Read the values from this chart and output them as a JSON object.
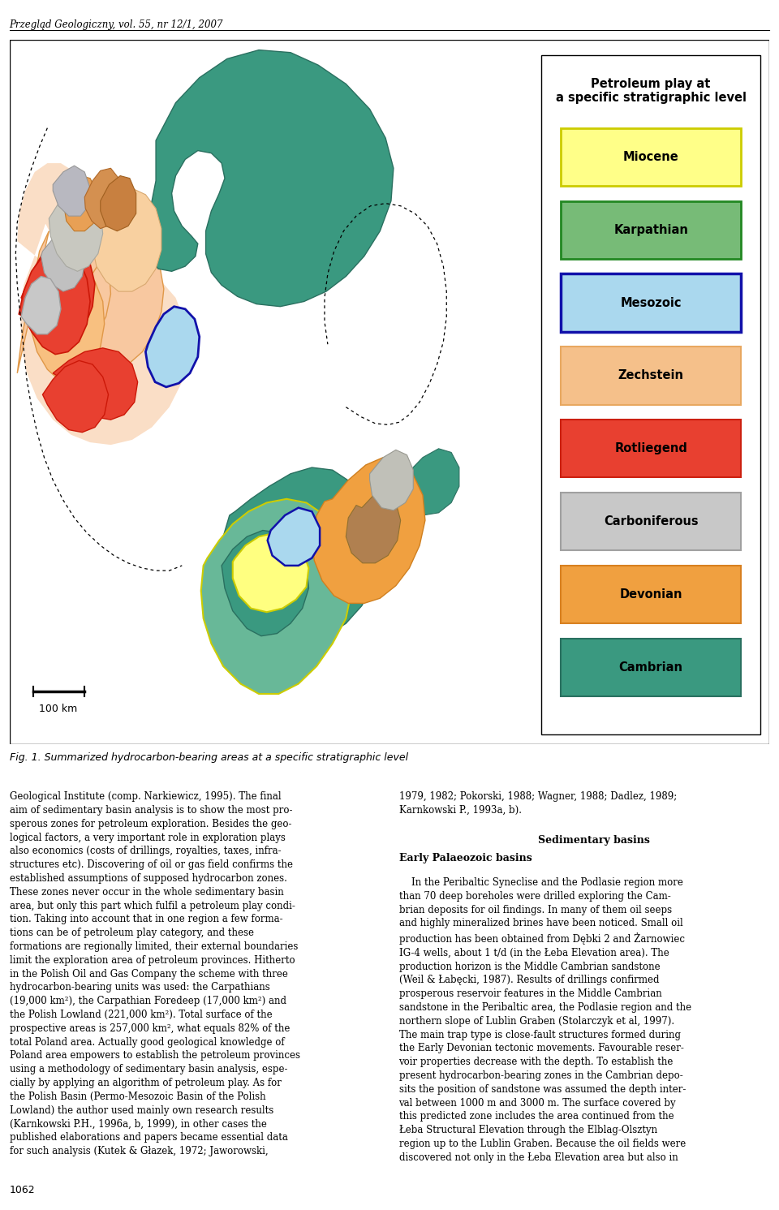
{
  "header_text": "Przegląd Geologiczny, vol. 55, nr 12/1, 2007",
  "fig_caption": "Fig. 1. Summarized hydrocarbon-bearing areas at a specific stratigraphic level",
  "scale_bar_text": "100 km",
  "legend_title": "Petroleum play at\na specific stratigraphic level",
  "legend_items": [
    {
      "label": "Miocene",
      "fill": "#FFFF88",
      "edge": "#CCCC00",
      "ewidth": 2.0
    },
    {
      "label": "Karpathian",
      "fill": "#77BB77",
      "edge": "#228822",
      "ewidth": 2.0
    },
    {
      "label": "Mesozoic",
      "fill": "#AAD8EE",
      "edge": "#1111AA",
      "ewidth": 2.5
    },
    {
      "label": "Zechstein",
      "fill": "#F5C08A",
      "edge": "#E8A860",
      "ewidth": 1.5
    },
    {
      "label": "Rotliegend",
      "fill": "#E84030",
      "edge": "#CC2010",
      "ewidth": 1.5
    },
    {
      "label": "Carboniferous",
      "fill": "#C8C8C8",
      "edge": "#A0A0A0",
      "ewidth": 1.5
    },
    {
      "label": "Devonian",
      "fill": "#F0A040",
      "edge": "#D88020",
      "ewidth": 1.5
    },
    {
      "label": "Cambrian",
      "fill": "#3A9980",
      "edge": "#2A7060",
      "ewidth": 1.5
    }
  ],
  "body_text_left": "Geological Institute (comp. Narkiewicz, 1995). The final\naim of sedimentary basin analysis is to show the most pro-\nsperous zones for petroleum exploration. Besides the geo-\nlogical factors, a very important role in exploration plays\nalso economics (costs of drillings, royalties, taxes, infra-\nstructures etc). Discovering of oil or gas field confirms the\nestablished assumptions of supposed hydrocarbon zones.\nThese zones never occur in the whole sedimentary basin\narea, but only this part which fulfil a petroleum play condi-\ntion. Taking into account that in one region a few forma-\ntions can be of petroleum play category, and these\nformations are regionally limited, their external boundaries\nlimit the exploration area of petroleum provinces. Hitherto\nin the Polish Oil and Gas Company the scheme with three\nhydrocarbon-bearing units was used: the Carpathians\n(19,000 km²), the Carpathian Foredeep (17,000 km²) and\nthe Polish Lowland (221,000 km²). Total surface of the\nprospective areas is 257,000 km², what equals 82% of the\ntotal Poland area. Actually good geological knowledge of\nPoland area empowers to establish the petroleum provinces\nusing a methodology of sedimentary basin analysis, espe-\ncially by applying an algorithm of petroleum play. As for\nthe Polish Basin (Permo-Mesozoic Basin of the Polish\nLowland) the author used mainly own research results\n(Karnkowski P.H., 1996a, b, 1999), in other cases the\npublished elaborations and papers became essential data\nfor such analysis (Kutek & Głazek, 1972; Jaworowski,",
  "body_text_right_intro": "1979, 1982; Pokorski, 1988; Wagner, 1988; Dadlez, 1989;\nKarnkowski P., 1993a, b).",
  "body_section_head": "Sedimentary basins",
  "body_subsection_head": "Early Palaeozoic basins",
  "body_text_right_para": "    In the Peribaltic Syneclise and the Podlasie region more\nthan 70 deep boreholes were drilled exploring the Cam-\nbrian deposits for oil findings. In many of them oil seeps\nand highly mineralized brines have been noticed. Small oil\nproduction has been obtained from Dębki 2 and Żarnowiec\nIG-4 wells, about 1 t/d (in the Łeba Elevation area). The\nproduction horizon is the Middle Cambrian sandstone\n(Weil & Łabęcki, 1987). Results of drillings confirmed\nprosperous reservoir features in the Middle Cambrian\nsandstone in the Peribaltic area, the Podlasie region and the\nnorthern slope of Lublin Graben (Stolarczyk et al, 1997).\nThe main trap type is close-fault structures formed during\nthe Early Devonian tectonic movements. Favourable reser-\nvoir properties decrease with the depth. To establish the\npresent hydrocarbon-bearing zones in the Cambrian depo-\nsits the position of sandstone was assumed the depth inter-\nval between 1000 m and 3000 m. The surface covered by\nthis predicted zone includes the area continued from the\nŁeba Structural Elevation through the Elblag-Olsztyn\nregion up to the Lublin Graben. Because the oil fields were\ndiscovered not only in the Łeba Elevation area but also in",
  "page_number": "1062"
}
